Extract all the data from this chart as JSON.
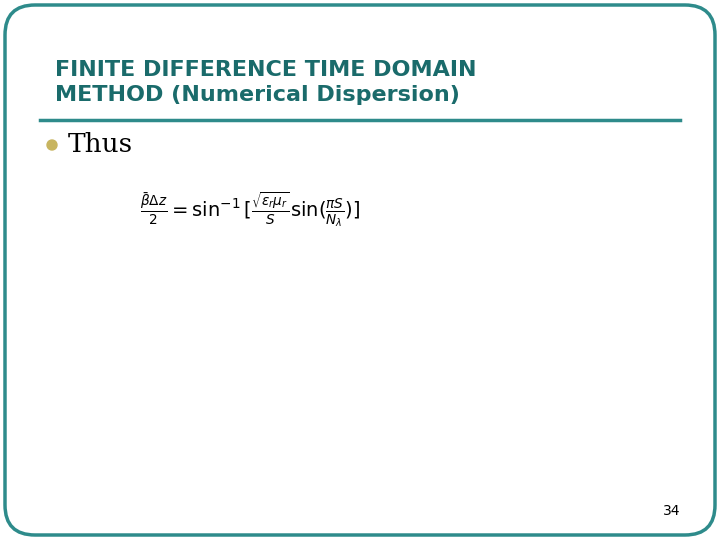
{
  "title_line1": "FINITE DIFFERENCE TIME DOMAIN",
  "title_line2": "METHOD (Numerical Dispersion)",
  "title_color": "#1a6b6b",
  "bullet_text": "Thus",
  "bullet_color": "#c8b560",
  "formula": "\\frac{\\bar{\\beta}\\Delta z}{2} = \\sin^{-1}[\\frac{\\sqrt{\\varepsilon_r \\mu_r}}{S}\\sin(\\frac{\\pi S}{N_{\\lambda}})]",
  "formula_color": "black",
  "slide_bg": "#ffffff",
  "border_color": "#2e8b8b",
  "page_number": "34",
  "page_number_color": "black",
  "title_fontsize": 16,
  "bullet_fontsize": 19,
  "formula_fontsize": 14
}
